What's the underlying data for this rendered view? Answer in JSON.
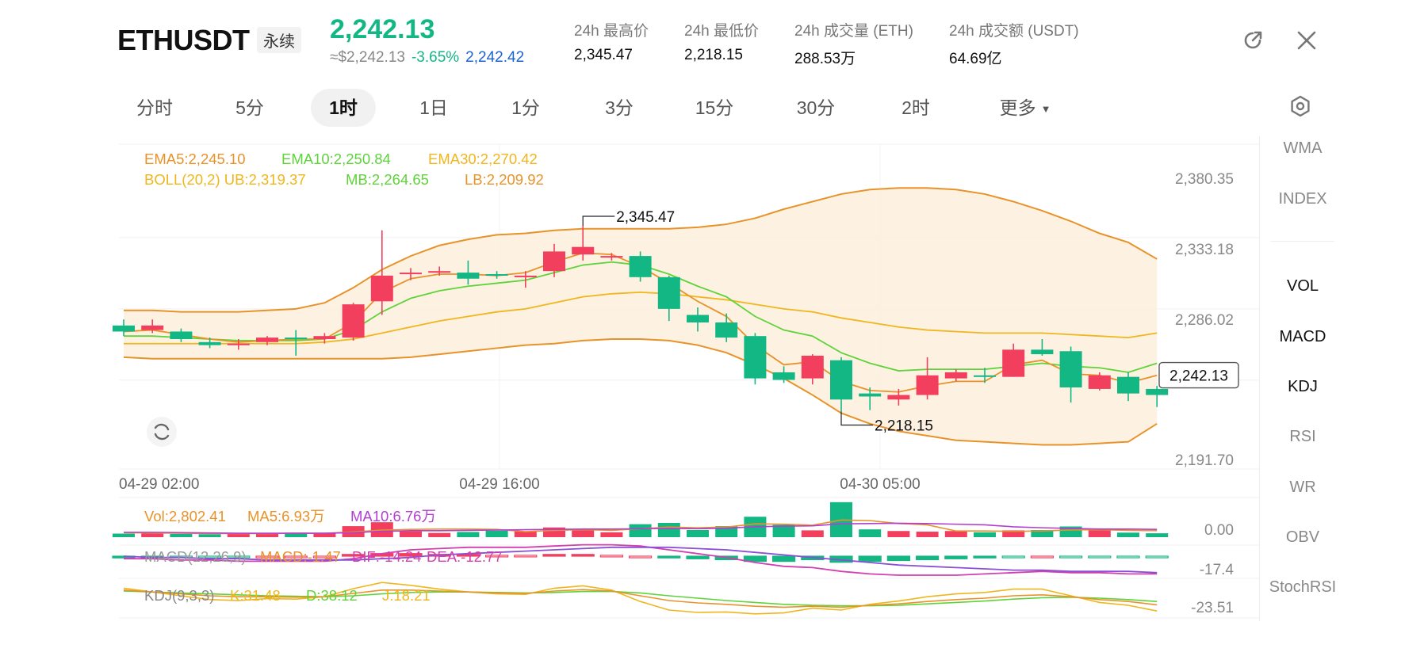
{
  "header": {
    "symbol": "ETHUSDT",
    "badge": "永续",
    "last_price": "2,242.13",
    "approx": "≈$2,242.13",
    "change": "-3.65%",
    "mark_price": "2,242.42",
    "stats": [
      {
        "label": "24h 最高价",
        "value": "2,345.47"
      },
      {
        "label": "24h 最低价",
        "value": "2,218.15"
      },
      {
        "label": "24h 成交量 (ETH)",
        "value": "288.53万"
      },
      {
        "label": "24h 成交额 (USDT)",
        "value": "64.69亿"
      }
    ],
    "icons": [
      "external-link-icon",
      "close-icon"
    ]
  },
  "tabs": [
    {
      "label": "分时",
      "active": false
    },
    {
      "label": "5分",
      "active": false
    },
    {
      "label": "1时",
      "active": true
    },
    {
      "label": "1日",
      "active": false
    },
    {
      "label": "1分",
      "active": false
    },
    {
      "label": "3分",
      "active": false
    },
    {
      "label": "15分",
      "active": false
    },
    {
      "label": "30分",
      "active": false
    },
    {
      "label": "2时",
      "active": false
    },
    {
      "label": "更多",
      "active": false
    }
  ],
  "sidebar": {
    "items": [
      {
        "label": "WMA",
        "on": false
      },
      {
        "label": "INDEX",
        "on": false
      },
      {
        "label": "VOL",
        "on": true
      },
      {
        "label": "MACD",
        "on": true
      },
      {
        "label": "KDJ",
        "on": true
      },
      {
        "label": "RSI",
        "on": false
      },
      {
        "label": "WR",
        "on": false
      },
      {
        "label": "OBV",
        "on": false
      },
      {
        "label": "StochRSI",
        "on": false
      }
    ]
  },
  "colors": {
    "up": "#f23f5d",
    "down": "#13b784",
    "ema5": "#e8932a",
    "ema10": "#5fd33a",
    "ema30": "#f0b61e",
    "boll": "#e8932a",
    "vol_ma5": "#e8932a",
    "vol_ma10": "#b23fd1"
  },
  "indicators": {
    "ema": [
      {
        "text": "EMA5:2,245.10",
        "color": "#e8932a"
      },
      {
        "text": "EMA10:2,250.84",
        "color": "#5fd33a"
      },
      {
        "text": "EMA30:2,270.42",
        "color": "#f0b61e"
      }
    ],
    "boll": [
      {
        "text": "BOLL(20,2) UB:2,319.37",
        "color": "#f0b61e"
      },
      {
        "text": "MB:2,264.65",
        "color": "#5fd33a"
      },
      {
        "text": "LB:2,209.92",
        "color": "#e8932a"
      }
    ],
    "vol": [
      {
        "text": "Vol:2,802.41",
        "color": "#e8932a"
      },
      {
        "text": "MA5:6.93万",
        "color": "#e8932a"
      },
      {
        "text": "MA10:6.76万",
        "color": "#b23fd1"
      }
    ],
    "macd": [
      {
        "text": "MACD(12,26,9)",
        "color": "#999999"
      },
      {
        "text": "MACD:-1.47",
        "color": "#e8932a"
      },
      {
        "text": "DIF:-14.24",
        "color": "#d23fb0"
      },
      {
        "text": "DEA:-12.77",
        "color": "#d23fb0"
      }
    ],
    "kdj": [
      {
        "text": "KDJ(9,3,3)",
        "color": "#888888"
      },
      {
        "text": "K:31.48",
        "color": "#f0b61e"
      },
      {
        "text": "D:38.12",
        "color": "#5fd33a"
      },
      {
        "text": "J:18.21",
        "color": "#f0b61e"
      }
    ]
  },
  "chart_data": {
    "type": "candlestick",
    "y_ticks": [
      "2,380.35",
      "2,333.18",
      "2,286.02",
      "2,191.70"
    ],
    "x_ticks": [
      "04-29 02:00",
      "04-29 16:00",
      "04-30 05:00"
    ],
    "ylim": [
      2191.7,
      2380.35
    ],
    "current_price": "2,242.13",
    "high_label": "2,345.47",
    "low_label": "2,218.15",
    "candles": [
      [
        2275,
        2271,
        2279,
        2268
      ],
      [
        2272,
        2275,
        2279,
        2270
      ],
      [
        2271,
        2266,
        2273,
        2264
      ],
      [
        2264,
        2262,
        2267,
        2260
      ],
      [
        2262,
        2263,
        2266,
        2259
      ],
      [
        2264,
        2267,
        2268,
        2262
      ],
      [
        2267,
        2266,
        2272,
        2255
      ],
      [
        2266,
        2268,
        2270,
        2263
      ],
      [
        2267,
        2289,
        2290,
        2265
      ],
      [
        2291,
        2308,
        2338,
        2282
      ],
      [
        2310,
        2310,
        2313,
        2305
      ],
      [
        2311,
        2311,
        2314,
        2308
      ],
      [
        2310,
        2306,
        2318,
        2302
      ],
      [
        2309,
        2308,
        2311,
        2306
      ],
      [
        2308,
        2308,
        2311,
        2300
      ],
      [
        2311,
        2324,
        2329,
        2307
      ],
      [
        2322,
        2327,
        2341,
        2318
      ],
      [
        2320,
        2321,
        2323,
        2318
      ],
      [
        2321,
        2307,
        2324,
        2304
      ],
      [
        2307,
        2286,
        2308,
        2278
      ],
      [
        2282,
        2277,
        2287,
        2271
      ],
      [
        2277,
        2267,
        2283,
        2264
      ],
      [
        2268,
        2240,
        2270,
        2236
      ],
      [
        2244,
        2239,
        2248,
        2237
      ],
      [
        2240,
        2255,
        2256,
        2236
      ],
      [
        2252,
        2226,
        2254,
        2218
      ],
      [
        2230,
        2228,
        2234,
        2219
      ],
      [
        2226,
        2229,
        2233,
        2222
      ],
      [
        2229,
        2242,
        2254,
        2226
      ],
      [
        2240,
        2244,
        2246,
        2238
      ],
      [
        2242,
        2241,
        2247,
        2237
      ],
      [
        2241,
        2259,
        2263,
        2241
      ],
      [
        2259,
        2256,
        2266,
        2255
      ],
      [
        2258,
        2234,
        2261,
        2224
      ],
      [
        2233,
        2242,
        2244,
        2232
      ],
      [
        2241,
        2230,
        2244,
        2225
      ],
      [
        2233,
        2229,
        2235,
        2221
      ]
    ],
    "ema5": [
      2271,
      2272,
      2269,
      2266,
      2264,
      2265,
      2266,
      2266,
      2277,
      2297,
      2306,
      2309,
      2309,
      2308,
      2310,
      2317,
      2323,
      2322,
      2314,
      2303,
      2291,
      2281,
      2262,
      2249,
      2251,
      2238,
      2232,
      2231,
      2235,
      2238,
      2238,
      2249,
      2252,
      2243,
      2242,
      2237,
      2242
    ],
    "ema10": [
      2268,
      2268,
      2267,
      2266,
      2265,
      2265,
      2265,
      2266,
      2272,
      2284,
      2293,
      2298,
      2301,
      2303,
      2305,
      2310,
      2315,
      2317,
      2315,
      2309,
      2301,
      2294,
      2281,
      2272,
      2268,
      2257,
      2250,
      2245,
      2246,
      2246,
      2246,
      2248,
      2250,
      2248,
      2247,
      2244,
      2250
    ],
    "ema30": [
      2263,
      2263,
      2263,
      2263,
      2263,
      2263,
      2263,
      2264,
      2266,
      2270,
      2274,
      2278,
      2281,
      2284,
      2286,
      2290,
      2294,
      2296,
      2297,
      2296,
      2294,
      2292,
      2289,
      2286,
      2284,
      2280,
      2277,
      2274,
      2272,
      2271,
      2270,
      2270,
      2270,
      2269,
      2268,
      2267,
      2270
    ],
    "boll_ub": [
      2285,
      2285,
      2284,
      2284,
      2284,
      2285,
      2286,
      2290,
      2300,
      2312,
      2321,
      2328,
      2332,
      2335,
      2336,
      2338,
      2339,
      2339,
      2339,
      2339,
      2340,
      2342,
      2346,
      2352,
      2357,
      2362,
      2365,
      2366,
      2366,
      2365,
      2362,
      2357,
      2351,
      2344,
      2336,
      2330,
      2319
    ],
    "boll_mb": [
      2268,
      2268,
      2268,
      2267,
      2267,
      2267,
      2267,
      2268,
      2270,
      2275,
      2280,
      2286,
      2291,
      2294,
      2297,
      2301,
      2306,
      2308,
      2309,
      2308,
      2306,
      2304,
      2300,
      2296,
      2291,
      2285,
      2279,
      2272,
      2267,
      2263,
      2260,
      2258,
      2256,
      2254,
      2253,
      2252,
      2265
    ],
    "boll_lb": [
      2254,
      2253,
      2253,
      2253,
      2253,
      2253,
      2253,
      2253,
      2253,
      2253,
      2254,
      2256,
      2258,
      2260,
      2262,
      2263,
      2265,
      2266,
      2266,
      2265,
      2262,
      2257,
      2249,
      2240,
      2229,
      2217,
      2210,
      2205,
      2202,
      2199,
      2198,
      2197,
      2196,
      2196,
      2197,
      2198,
      2210
    ],
    "volume_ylabel": "0.00",
    "volume": [
      1.1,
      1.3,
      1.0,
      0.9,
      1.2,
      1.0,
      1.4,
      1.2,
      3.4,
      4.6,
      1.8,
      1.3,
      1.6,
      2.0,
      1.8,
      3.0,
      2.4,
      1.5,
      4.0,
      4.4,
      2.2,
      3.4,
      6.3,
      3.8,
      2.1,
      10.8,
      2.4,
      1.9,
      1.7,
      1.9,
      1.5,
      2.1,
      2.2,
      3.3,
      2.2,
      1.4,
      1.2
    ],
    "vol_ma5": [
      1.4,
      1.3,
      1.2,
      1.1,
      1.1,
      1.1,
      1.2,
      1.2,
      1.6,
      2.2,
      2.4,
      2.5,
      2.5,
      2.4,
      1.7,
      2.1,
      2.3,
      2.1,
      2.6,
      3.1,
      2.9,
      3.1,
      4.1,
      4.0,
      3.7,
      5.3,
      5.1,
      4.2,
      3.8,
      1.9,
      1.9,
      1.8,
      1.9,
      2.2,
      2.3,
      2.1,
      2.0
    ],
    "vol_ma10": [
      1.5,
      1.5,
      1.4,
      1.3,
      1.2,
      1.2,
      1.2,
      1.2,
      1.4,
      1.8,
      2.0,
      2.0,
      2.1,
      2.2,
      2.3,
      2.4,
      2.5,
      2.5,
      2.6,
      2.7,
      2.6,
      2.8,
      3.2,
      3.4,
      3.5,
      4.1,
      4.2,
      4.3,
      4.2,
      4.0,
      3.8,
      3.2,
      2.9,
      2.7,
      2.5,
      2.5,
      2.4
    ],
    "macd_ylabel": "-17.4",
    "macd_hist": [
      -2,
      -2,
      -1,
      -1,
      -1,
      0,
      0,
      0,
      2,
      3,
      3,
      2,
      2,
      1,
      1,
      2,
      2,
      1,
      0,
      -2,
      -3,
      -4,
      -6,
      -6,
      -4,
      -7,
      -6,
      -5,
      -4,
      -3,
      -2,
      -1,
      0,
      -1,
      -1,
      -1,
      -1
    ],
    "dif": [
      -2,
      -2,
      -3,
      -3,
      -4,
      -4,
      -4,
      -4,
      -2,
      2,
      5,
      6,
      7,
      7,
      7,
      8,
      9,
      9,
      8,
      5,
      2,
      -1,
      -5,
      -8,
      -9,
      -12,
      -14,
      -15,
      -15,
      -15,
      -14,
      -13,
      -12,
      -13,
      -13,
      -14,
      -14
    ],
    "dea": [
      0,
      -1,
      -1,
      -2,
      -2,
      -3,
      -3,
      -3,
      -3,
      -2,
      -1,
      1,
      2,
      3,
      4,
      5,
      6,
      7,
      7,
      7,
      6,
      5,
      3,
      1,
      -1,
      -3,
      -5,
      -7,
      -8,
      -9,
      -10,
      -11,
      -11,
      -12,
      -12,
      -12,
      -13
    ],
    "kdj_ylabel": "-23.51",
    "k": [
      62,
      58,
      54,
      50,
      48,
      48,
      47,
      48,
      55,
      62,
      62,
      60,
      58,
      56,
      55,
      60,
      63,
      60,
      50,
      40,
      35,
      32,
      28,
      26,
      28,
      26,
      30,
      33,
      38,
      42,
      45,
      50,
      52,
      48,
      42,
      38,
      31
    ],
    "d": [
      60,
      58,
      56,
      54,
      52,
      50,
      49,
      48,
      50,
      54,
      57,
      58,
      58,
      57,
      56,
      57,
      59,
      59,
      56,
      50,
      45,
      40,
      36,
      32,
      30,
      29,
      29,
      30,
      33,
      36,
      39,
      43,
      46,
      47,
      45,
      42,
      38
    ],
    "j": [
      66,
      58,
      50,
      42,
      40,
      44,
      43,
      48,
      65,
      78,
      72,
      64,
      58,
      54,
      53,
      66,
      71,
      62,
      38,
      20,
      15,
      16,
      12,
      14,
      24,
      20,
      32,
      39,
      48,
      54,
      57,
      64,
      64,
      50,
      36,
      30,
      18
    ]
  }
}
